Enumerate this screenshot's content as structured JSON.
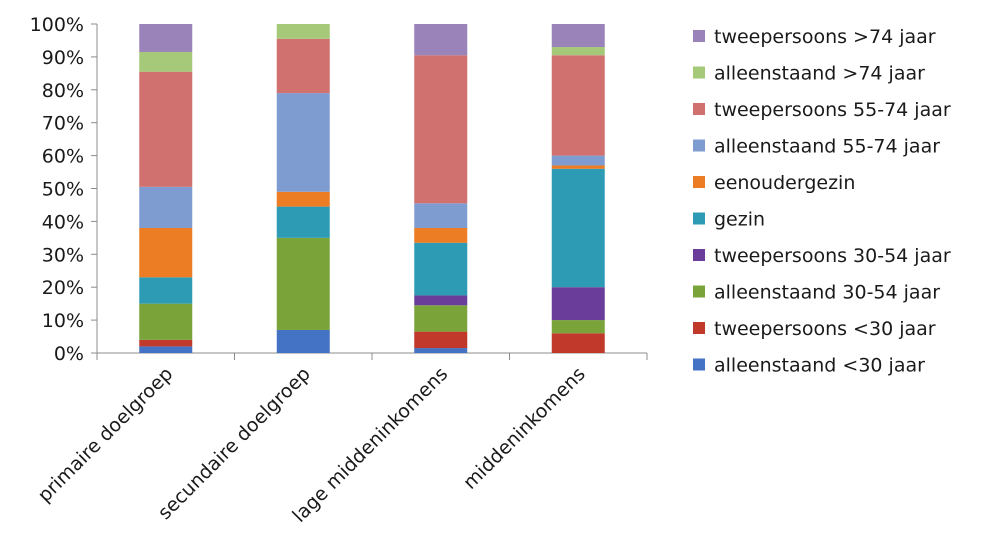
{
  "chart_data": {
    "type": "bar",
    "stacked": "percent",
    "categories": [
      "primaire doelgroep",
      "secundaire doelgroep",
      "lage middeninkomens",
      "middeninkomens"
    ],
    "ylim": [
      0,
      100
    ],
    "yticks": [
      "0%",
      "10%",
      "20%",
      "30%",
      "40%",
      "50%",
      "60%",
      "70%",
      "80%",
      "90%",
      "100%"
    ],
    "ytick_values": [
      0,
      10,
      20,
      30,
      40,
      50,
      60,
      70,
      80,
      90,
      100
    ],
    "grid": false,
    "legend_position": "right",
    "series": [
      {
        "name": "alleenstaand <30 jaar",
        "color": "#4472C4",
        "values": [
          2,
          7,
          1.5,
          0
        ]
      },
      {
        "name": "tweepersoons <30 jaar",
        "color": "#C0392B",
        "values": [
          2,
          0,
          5,
          6
        ]
      },
      {
        "name": "alleenstaand 30-54 jaar",
        "color": "#7AA43A",
        "values": [
          11,
          28,
          8,
          4
        ]
      },
      {
        "name": "tweepersoons 30-54 jaar",
        "color": "#6A3D9A",
        "values": [
          0,
          0,
          3,
          10
        ]
      },
      {
        "name": "gezin",
        "color": "#2E9BB5",
        "values": [
          8,
          9.5,
          16,
          36
        ]
      },
      {
        "name": "eenoudergezin",
        "color": "#EC7D24",
        "values": [
          15,
          4.5,
          4.5,
          1
        ]
      },
      {
        "name": "alleenstaand 55-74 jaar",
        "color": "#7F9CD1",
        "values": [
          12.5,
          30,
          7.5,
          3
        ]
      },
      {
        "name": "tweepersoons 55-74 jaar",
        "color": "#D0706F",
        "values": [
          35,
          16.5,
          45,
          30.5
        ]
      },
      {
        "name": "alleenstaand >74 jaar",
        "color": "#A5C879",
        "values": [
          6,
          4.5,
          0,
          2.5
        ]
      },
      {
        "name": "tweepersoons >74 jaar",
        "color": "#9983B8",
        "values": [
          8.5,
          0,
          9.5,
          7
        ]
      }
    ]
  }
}
